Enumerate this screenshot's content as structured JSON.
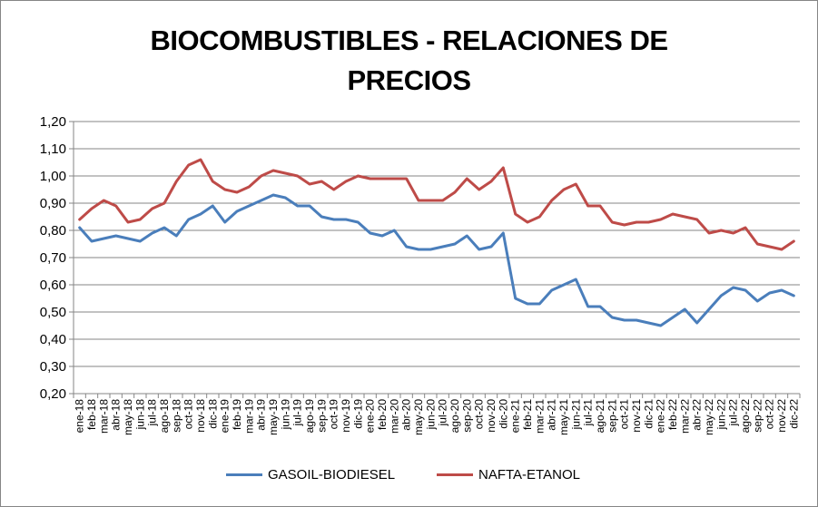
{
  "chart_data": {
    "type": "line",
    "title": "BIOCOMBUSTIBLES - RELACIONES DE PRECIOS",
    "title_lines": [
      "BIOCOMBUSTIBLES - RELACIONES DE",
      "PRECIOS"
    ],
    "xlabel": "",
    "ylabel": "",
    "ylim": [
      0.2,
      1.2
    ],
    "yticks": [
      "0,20",
      "0,30",
      "0,40",
      "0,50",
      "0,60",
      "0,70",
      "0,80",
      "0,90",
      "1,00",
      "1,10",
      "1,20"
    ],
    "ytick_values": [
      0.2,
      0.3,
      0.4,
      0.5,
      0.6,
      0.7,
      0.8,
      0.9,
      1.0,
      1.1,
      1.2
    ],
    "grid": true,
    "legend_position": "bottom",
    "categories": [
      "ene-18",
      "feb-18",
      "mar-18",
      "abr-18",
      "may-18",
      "jun-18",
      "jul-18",
      "ago-18",
      "sep-18",
      "oct-18",
      "nov-18",
      "dic-18",
      "ene-19",
      "feb-19",
      "mar-19",
      "abr-19",
      "may-19",
      "jun-19",
      "jul-19",
      "ago-19",
      "sep-19",
      "oct-19",
      "nov-19",
      "dic-19",
      "ene-20",
      "feb-20",
      "mar-20",
      "abr-20",
      "may-20",
      "jun-20",
      "jul-20",
      "ago-20",
      "sep-20",
      "oct-20",
      "nov-20",
      "dic-20",
      "ene-21",
      "feb-21",
      "mar-21",
      "abr-21",
      "may-21",
      "jun-21",
      "jul-21",
      "ago-21",
      "sep-21",
      "oct-21",
      "nov-21",
      "dic-21",
      "ene-22",
      "feb-22",
      "mar-22",
      "abr-22",
      "may-22",
      "jun-22",
      "jul-22",
      "ago-22",
      "sep-22",
      "oct-22",
      "nov-22",
      "dic-22"
    ],
    "series": [
      {
        "name": "GASOIL-BIODIESEL",
        "color": "#4A7EBB",
        "values": [
          0.81,
          0.76,
          0.77,
          0.78,
          0.77,
          0.76,
          0.79,
          0.81,
          0.78,
          0.84,
          0.86,
          0.89,
          0.83,
          0.87,
          0.89,
          0.91,
          0.93,
          0.92,
          0.89,
          0.89,
          0.85,
          0.84,
          0.84,
          0.83,
          0.79,
          0.78,
          0.8,
          0.74,
          0.73,
          0.73,
          0.74,
          0.75,
          0.78,
          0.73,
          0.74,
          0.79,
          0.55,
          0.53,
          0.53,
          0.58,
          0.6,
          0.62,
          0.52,
          0.52,
          0.48,
          0.47,
          0.47,
          0.46,
          0.45,
          0.48,
          0.51,
          0.46,
          0.51,
          0.56,
          0.59,
          0.58,
          0.54,
          0.57,
          0.58,
          0.56
        ]
      },
      {
        "name": "NAFTA-ETANOL",
        "color": "#BE4B48",
        "values": [
          0.84,
          0.88,
          0.91,
          0.89,
          0.83,
          0.84,
          0.88,
          0.9,
          0.98,
          1.04,
          1.06,
          0.98,
          0.95,
          0.94,
          0.96,
          1.0,
          1.02,
          1.01,
          1.0,
          0.97,
          0.98,
          0.95,
          0.98,
          1.0,
          0.99,
          0.99,
          0.99,
          0.99,
          0.91,
          0.91,
          0.91,
          0.94,
          0.99,
          0.95,
          0.98,
          1.03,
          0.86,
          0.83,
          0.85,
          0.91,
          0.95,
          0.97,
          0.89,
          0.89,
          0.83,
          0.82,
          0.83,
          0.83,
          0.84,
          0.86,
          0.85,
          0.84,
          0.79,
          0.8,
          0.79,
          0.81,
          0.75,
          0.74,
          0.73,
          0.76
        ]
      }
    ]
  }
}
